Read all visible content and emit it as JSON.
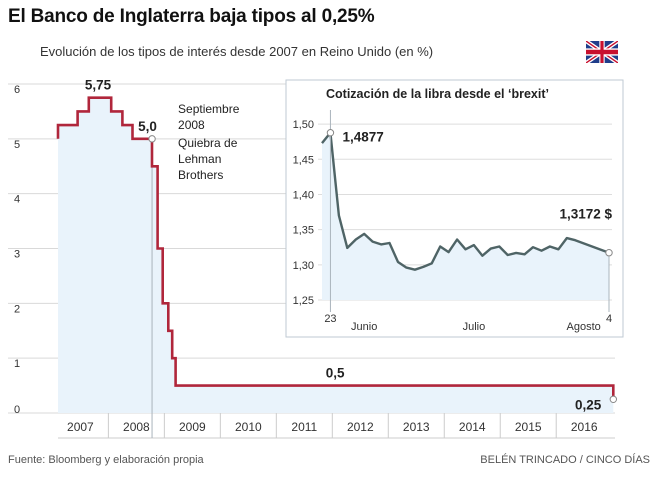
{
  "title": "El Banco de Inglaterra baja tipos al 0,25%",
  "subtitle": "Evolución de los tipos de interés desde 2007 en Reino Unido (en %)",
  "footer": {
    "source": "Fuente: Bloomberg y elaboración propia",
    "credit": "BELÉN TRINCADO / CINCO DÍAS"
  },
  "flag": {
    "name": "union-jack-flag-icon",
    "colors": {
      "blue": "#1f3d8a",
      "red": "#c8102e",
      "white": "#ffffff"
    }
  },
  "colors": {
    "main_line": "#b0263b",
    "main_fill": "#e9f3fb",
    "inset_line": "#4f6466",
    "inset_fill": "#e9f3fb",
    "inset_border": "#bfcad3",
    "gridline": "#d9d9d9"
  },
  "chart_data": [
    {
      "type": "area",
      "title": "Evolución de los tipos de interés desde 2007 en Reino Unido (en %)",
      "xlabel": "",
      "ylabel": "",
      "xlim": [
        2006.6,
        2016.55
      ],
      "ylim": [
        0,
        6
      ],
      "yticks": [
        "0",
        "1",
        "2",
        "3",
        "4",
        "5",
        "6"
      ],
      "xticks": [
        {
          "label": "2007",
          "x": 2007.0
        },
        {
          "label": "2008",
          "x": 2008.0
        },
        {
          "label": "2009",
          "x": 2009.0
        },
        {
          "label": "2010",
          "x": 2010.0
        },
        {
          "label": "2011",
          "x": 2011.0
        },
        {
          "label": "2012",
          "x": 2012.0
        },
        {
          "label": "2013",
          "x": 2013.0
        },
        {
          "label": "2014",
          "x": 2014.0
        },
        {
          "label": "2015",
          "x": 2015.0
        },
        {
          "label": "2016",
          "x": 2016.0
        }
      ],
      "step_points": [
        [
          2006.6,
          5.0
        ],
        [
          2006.6,
          5.25
        ],
        [
          2006.95,
          5.25
        ],
        [
          2006.95,
          5.5
        ],
        [
          2007.15,
          5.5
        ],
        [
          2007.15,
          5.75
        ],
        [
          2007.55,
          5.75
        ],
        [
          2007.55,
          5.5
        ],
        [
          2007.75,
          5.5
        ],
        [
          2007.75,
          5.25
        ],
        [
          2007.93,
          5.25
        ],
        [
          2007.93,
          5.0
        ],
        [
          2008.28,
          5.0
        ],
        [
          2008.28,
          4.5
        ],
        [
          2008.38,
          4.5
        ],
        [
          2008.38,
          3.0
        ],
        [
          2008.47,
          3.0
        ],
        [
          2008.47,
          2.0
        ],
        [
          2008.57,
          2.0
        ],
        [
          2008.57,
          1.5
        ],
        [
          2008.64,
          1.5
        ],
        [
          2008.64,
          1.0
        ],
        [
          2008.7,
          1.0
        ],
        [
          2008.7,
          0.5
        ],
        [
          2016.52,
          0.5
        ],
        [
          2016.52,
          0.25
        ]
      ],
      "annotations": [
        {
          "label": "5,75",
          "x": 2007.35,
          "y": 5.75
        },
        {
          "label": "5,0",
          "x": 2008.2,
          "y": 5.0
        },
        {
          "label": "0,5",
          "x": 2011.55,
          "y": 0.5
        },
        {
          "label": "0,25",
          "x": 2016.52,
          "y": 0.25
        }
      ],
      "event": {
        "x": 2008.28,
        "y": 5.0,
        "lines": [
          "Septiembre",
          "2008"
        ],
        "note_lines": [
          "Quiebra de",
          "Lehman",
          "Brothers"
        ]
      }
    },
    {
      "type": "line",
      "title": "Cotización de la libra desde el ‘brexit’",
      "xlabel": "",
      "ylabel": "",
      "ylim": [
        1.25,
        1.52
      ],
      "yticks": [
        "1,50",
        "1,45",
        "1,40",
        "1,35",
        "1,30",
        "1,25"
      ],
      "ytick_values": [
        1.5,
        1.45,
        1.4,
        1.35,
        1.3,
        1.25
      ],
      "xlim": [
        0,
        34
      ],
      "x_axis_labels": [
        {
          "label": "23",
          "x": 1
        },
        {
          "label": "Junio",
          "x": 5
        },
        {
          "label": "Julio",
          "x": 18
        },
        {
          "label": "Agosto",
          "x": 31
        },
        {
          "label": "4",
          "x": 34
        }
      ],
      "values": [
        1.473,
        1.4877,
        1.37,
        1.324,
        1.336,
        1.344,
        1.333,
        1.329,
        1.331,
        1.304,
        1.296,
        1.293,
        1.297,
        1.302,
        1.326,
        1.318,
        1.336,
        1.322,
        1.328,
        1.313,
        1.323,
        1.326,
        1.314,
        1.317,
        1.315,
        1.325,
        1.32,
        1.326,
        1.322,
        1.338,
        1.335,
        1.3172
      ],
      "value_x": [
        0,
        1,
        2,
        3,
        4,
        5,
        6,
        7,
        8,
        9,
        10,
        11,
        12,
        13,
        14,
        15,
        16,
        17,
        18,
        19,
        20,
        21,
        22,
        23,
        24,
        25,
        26,
        27,
        28,
        29,
        30,
        34
      ],
      "annotations": [
        {
          "label": "1,4877",
          "x": 1,
          "y": 1.4877
        },
        {
          "label": "1,3172 $",
          "x": 34,
          "y": 1.3172
        }
      ]
    }
  ]
}
